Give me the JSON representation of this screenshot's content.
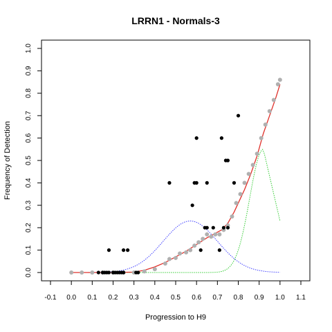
{
  "chart_data": {
    "type": "scatter",
    "title": "LRRN1 - Normals-3",
    "xlabel": "Progression to H9",
    "ylabel": "Frequency of Detection",
    "xlim": [
      -0.1,
      1.1
    ],
    "ylim": [
      0.0,
      1.0
    ],
    "x_ticks": [
      "-0.1",
      "0.0",
      "0.1",
      "0.2",
      "0.3",
      "0.4",
      "0.5",
      "0.6",
      "0.7",
      "0.8",
      "0.9",
      "1.0",
      "1.1"
    ],
    "y_ticks": [
      "0.0",
      "0.1",
      "0.2",
      "0.3",
      "0.4",
      "0.5",
      "0.6",
      "0.7",
      "0.8",
      "0.9",
      "1.0"
    ],
    "grid": false,
    "series": [
      {
        "role": "observed-points",
        "color": "#000000",
        "points": [
          [
            0.13,
            0.0
          ],
          [
            0.15,
            0.0
          ],
          [
            0.16,
            0.0
          ],
          [
            0.17,
            0.0
          ],
          [
            0.18,
            0.0
          ],
          [
            0.2,
            0.0
          ],
          [
            0.21,
            0.0
          ],
          [
            0.22,
            0.0
          ],
          [
            0.23,
            0.0
          ],
          [
            0.24,
            0.0
          ],
          [
            0.25,
            0.0
          ],
          [
            0.31,
            0.0
          ],
          [
            0.32,
            0.0
          ],
          [
            0.18,
            0.1
          ],
          [
            0.25,
            0.1
          ],
          [
            0.27,
            0.1
          ],
          [
            0.47,
            0.4
          ],
          [
            0.59,
            0.4
          ],
          [
            0.6,
            0.4
          ],
          [
            0.58,
            0.3
          ],
          [
            0.6,
            0.6
          ],
          [
            0.62,
            0.1
          ],
          [
            0.64,
            0.2
          ],
          [
            0.65,
            0.2
          ],
          [
            0.65,
            0.4
          ],
          [
            0.68,
            0.2
          ],
          [
            0.71,
            0.1
          ],
          [
            0.72,
            0.6
          ],
          [
            0.73,
            0.2
          ],
          [
            0.74,
            0.5
          ],
          [
            0.75,
            0.5
          ],
          [
            0.75,
            0.2
          ],
          [
            0.78,
            0.4
          ],
          [
            0.8,
            0.7
          ]
        ]
      },
      {
        "role": "smoothed-points",
        "color": "#b0b0b0",
        "points": [
          [
            0.0,
            0.0
          ],
          [
            0.05,
            0.0
          ],
          [
            0.1,
            0.0
          ],
          [
            0.15,
            0.0
          ],
          [
            0.2,
            0.0
          ],
          [
            0.25,
            0.0
          ],
          [
            0.3,
            0.0
          ],
          [
            0.35,
            0.005
          ],
          [
            0.4,
            0.015
          ],
          [
            0.45,
            0.04
          ],
          [
            0.47,
            0.06
          ],
          [
            0.5,
            0.065
          ],
          [
            0.52,
            0.085
          ],
          [
            0.55,
            0.09
          ],
          [
            0.57,
            0.1
          ],
          [
            0.59,
            0.12
          ],
          [
            0.61,
            0.135
          ],
          [
            0.63,
            0.15
          ],
          [
            0.65,
            0.17
          ],
          [
            0.67,
            0.16
          ],
          [
            0.69,
            0.17
          ],
          [
            0.71,
            0.17
          ],
          [
            0.73,
            0.19
          ],
          [
            0.75,
            0.21
          ],
          [
            0.77,
            0.25
          ],
          [
            0.79,
            0.31
          ],
          [
            0.81,
            0.35
          ],
          [
            0.83,
            0.4
          ],
          [
            0.85,
            0.44
          ],
          [
            0.87,
            0.48
          ],
          [
            0.89,
            0.53
          ],
          [
            0.91,
            0.6
          ],
          [
            0.93,
            0.66
          ],
          [
            0.95,
            0.72
          ],
          [
            0.97,
            0.77
          ],
          [
            0.99,
            0.84
          ],
          [
            1.0,
            0.86
          ]
        ]
      },
      {
        "role": "fit-curve",
        "color": "#e0302a",
        "points": [
          [
            0.0,
            0.0
          ],
          [
            0.1,
            0.0
          ],
          [
            0.2,
            0.0
          ],
          [
            0.3,
            0.002
          ],
          [
            0.35,
            0.01
          ],
          [
            0.4,
            0.025
          ],
          [
            0.45,
            0.045
          ],
          [
            0.5,
            0.07
          ],
          [
            0.55,
            0.095
          ],
          [
            0.6,
            0.125
          ],
          [
            0.65,
            0.155
          ],
          [
            0.7,
            0.18
          ],
          [
            0.72,
            0.19
          ],
          [
            0.75,
            0.22
          ],
          [
            0.78,
            0.27
          ],
          [
            0.8,
            0.31
          ],
          [
            0.83,
            0.37
          ],
          [
            0.86,
            0.44
          ],
          [
            0.89,
            0.52
          ],
          [
            0.92,
            0.62
          ],
          [
            0.95,
            0.7
          ],
          [
            0.98,
            0.78
          ],
          [
            1.0,
            0.84
          ]
        ]
      },
      {
        "role": "component-1",
        "color": "#4040ff",
        "mu": 0.57,
        "sigma": 0.13,
        "peak": 0.23,
        "x_from": 0.0,
        "x_to": 1.0
      },
      {
        "role": "component-2",
        "color": "#33cc33",
        "mu": 0.92,
        "sigma": 0.065,
        "peak": 0.55,
        "x_from": 0.0,
        "x_to": 1.0,
        "tail_end": 0.23
      }
    ]
  }
}
